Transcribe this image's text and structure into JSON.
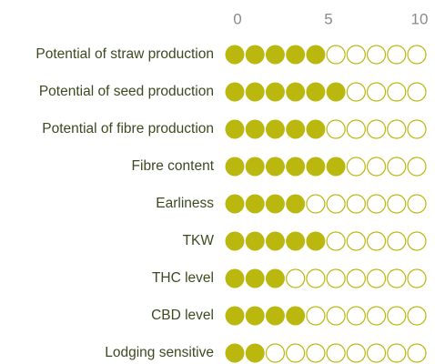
{
  "chart_data": {
    "type": "dot-rating",
    "categories": [
      "Potential of straw production",
      "Potential of seed production",
      "Potential of fibre production",
      "Fibre content",
      "Earliness",
      "TKW",
      "THC level",
      "CBD level",
      "Lodging sensitive"
    ],
    "values": [
      5,
      6,
      5,
      6,
      4,
      5,
      3,
      4,
      2
    ],
    "color": "#bab80f",
    "xlim": [
      0,
      10
    ],
    "xticks": [
      0,
      5,
      10
    ]
  }
}
